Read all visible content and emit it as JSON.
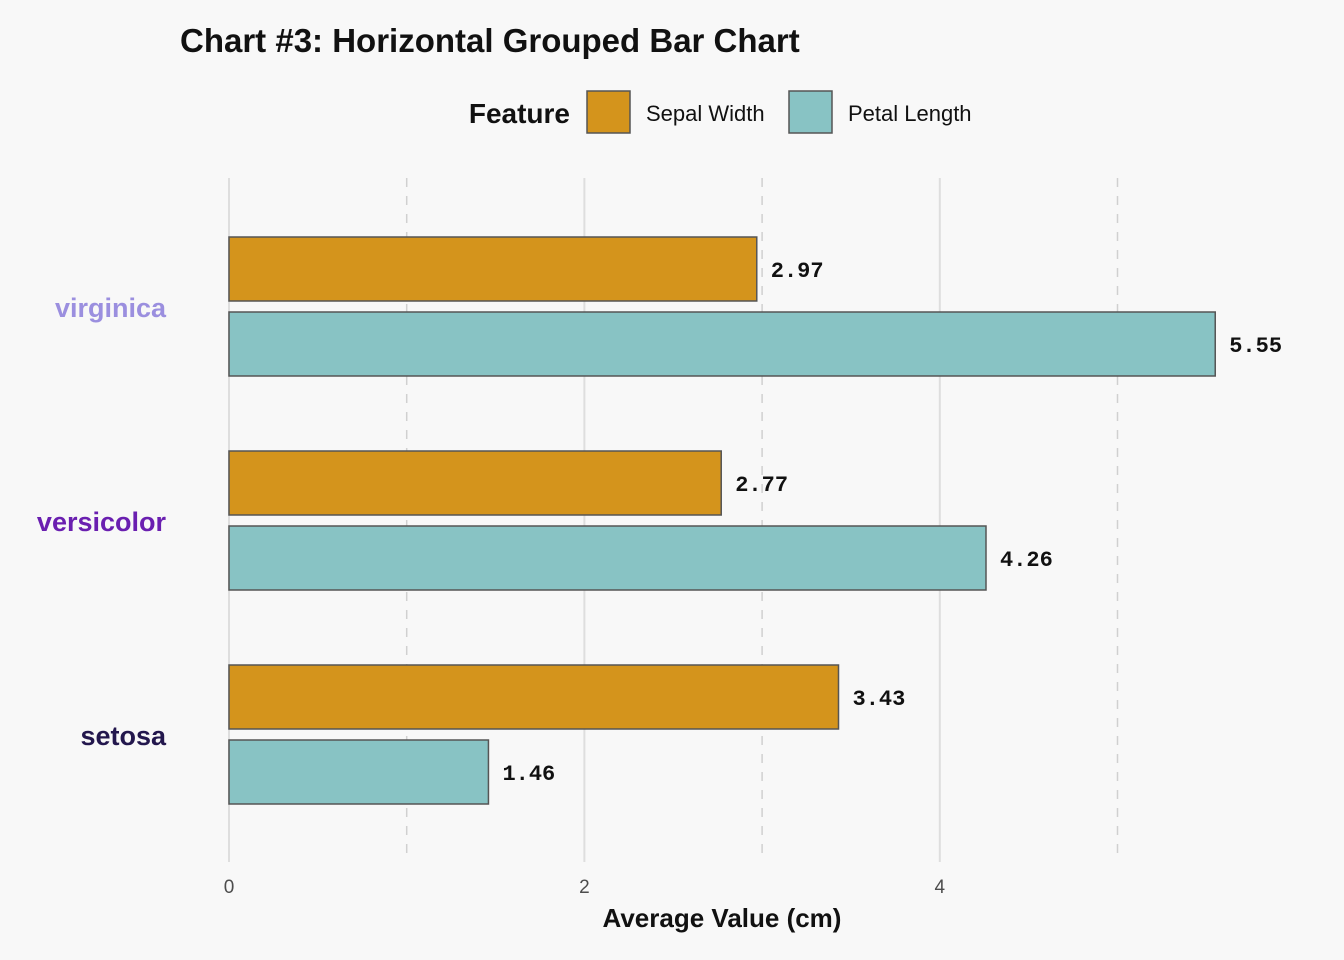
{
  "chart_data": {
    "type": "bar",
    "orientation": "horizontal",
    "title": "Chart #3: Horizontal Grouped Bar Chart",
    "xlabel": "Average Value (cm)",
    "ylabel": "",
    "xlim": [
      0,
      5.8
    ],
    "x_ticks": [
      0,
      2,
      4
    ],
    "grid": true,
    "legend": {
      "title": "Feature",
      "position": "top"
    },
    "categories": [
      "virginica",
      "versicolor",
      "setosa"
    ],
    "category_colors": [
      "#9b8fdf",
      "#6a1fb0",
      "#23174d"
    ],
    "series": [
      {
        "name": "Sepal Width",
        "color": "#d4941c",
        "values": [
          2.97,
          2.77,
          3.43
        ],
        "labels": [
          "2.97",
          "2.77",
          "3.43"
        ]
      },
      {
        "name": "Petal Length",
        "color": "#88c3c4",
        "values": [
          5.55,
          4.26,
          1.46
        ],
        "labels": [
          "5.55",
          "4.26",
          "1.46"
        ]
      }
    ]
  }
}
